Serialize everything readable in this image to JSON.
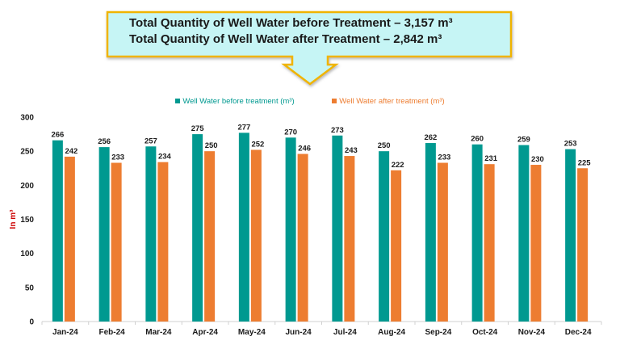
{
  "callout": {
    "line1": "Total Quantity of Well Water before Treatment – 3,157 m³",
    "line2": "Total Quantity of Well Water after Treatment – 2,842 m³"
  },
  "colors": {
    "before": "#009990",
    "after": "#ED7D31",
    "callout_fill": "#C6F5F5",
    "callout_border": "#F0B400",
    "ylabel": "#CC0000"
  },
  "chart_data": {
    "type": "bar",
    "title": "",
    "xlabel": "",
    "ylabel": "In m³",
    "ylim": [
      0,
      300
    ],
    "yticks": [
      0,
      50,
      100,
      150,
      200,
      250,
      300
    ],
    "grid": false,
    "legend_position": "top",
    "categories": [
      "Jan-24",
      "Feb-24",
      "Mar-24",
      "Apr-24",
      "May-24",
      "Jun-24",
      "Jul-24",
      "Aug-24",
      "Sep-24",
      "Oct-24",
      "Nov-24",
      "Dec-24"
    ],
    "series": [
      {
        "name": "Well Water before treatment (m³)",
        "values": [
          266,
          256,
          257,
          275,
          277,
          270,
          273,
          250,
          262,
          260,
          259,
          253
        ]
      },
      {
        "name": "Well Water after treatment (m³)",
        "values": [
          242,
          233,
          234,
          250,
          252,
          246,
          243,
          222,
          233,
          231,
          230,
          225
        ]
      }
    ]
  }
}
